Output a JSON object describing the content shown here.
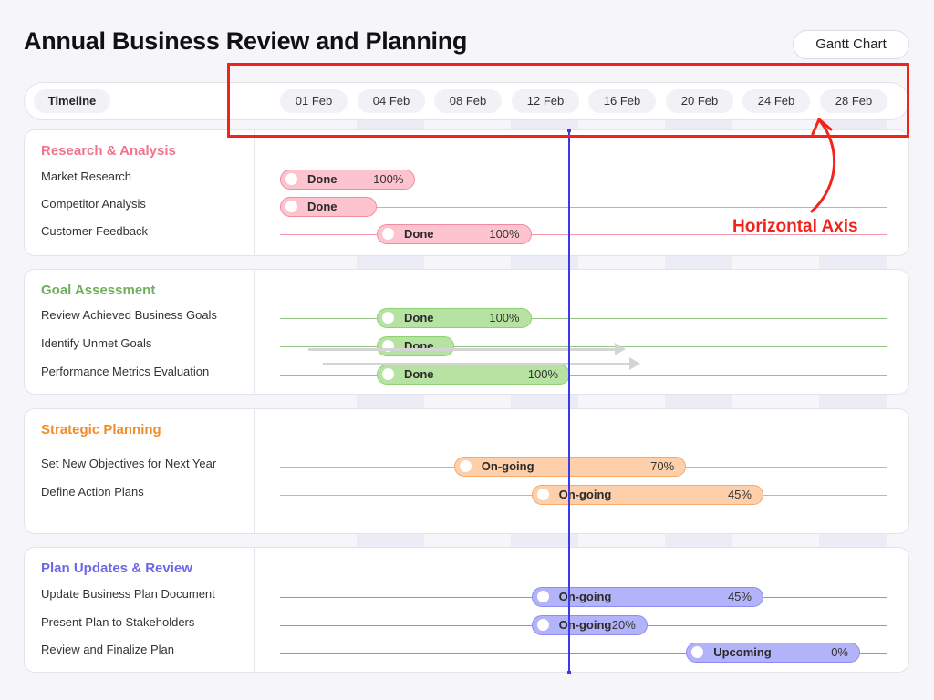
{
  "title": "Annual Business Review and Planning",
  "chart_type_label": "Gantt Chart",
  "annotation": "Horizontal Axis",
  "chart_data": {
    "type": "gantt",
    "axis_label": "Timeline",
    "dates": [
      "01 Feb",
      "04 Feb",
      "08 Feb",
      "12 Feb",
      "16 Feb",
      "20 Feb",
      "24 Feb",
      "28 Feb"
    ],
    "today": 16,
    "groups": [
      {
        "name": "Research & Analysis",
        "color": "#f0748d",
        "bar_fill": "#fdc4cf",
        "bar_border": "#f28ba0",
        "tasks": [
          {
            "name": "Market Research",
            "start": 1,
            "end": 8,
            "status": "Done",
            "progress": "100%"
          },
          {
            "name": "Competitor Analysis",
            "start": 1,
            "end": 6,
            "status": "Done",
            "progress": ""
          },
          {
            "name": "Customer Feedback",
            "start": 6,
            "end": 14,
            "status": "Done",
            "progress": "100%"
          }
        ]
      },
      {
        "name": "Goal Assessment",
        "color": "#6fae5a",
        "bar_fill": "#b7e3a2",
        "bar_border": "#8fd072",
        "tasks": [
          {
            "name": "Review Achieved Business Goals",
            "start": 6,
            "end": 14,
            "status": "Done",
            "progress": "100%"
          },
          {
            "name": "Identify Unmet Goals",
            "start": 6,
            "end": 10,
            "status": "Done",
            "progress": ""
          },
          {
            "name": "Performance Metrics Evaluation",
            "start": 6,
            "end": 16,
            "status": "Done",
            "progress": "100%"
          }
        ]
      },
      {
        "name": "Strategic Planning",
        "color": "#f08c2a",
        "bar_fill": "#fdd0ab",
        "bar_border": "#f5a86a",
        "tasks": [
          {
            "name": "Set New Objectives for Next Year",
            "start": 10,
            "end": 22,
            "status": "On-going",
            "progress": "70%"
          },
          {
            "name": "Define Action Plans",
            "start": 14,
            "end": 26,
            "status": "On-going",
            "progress": "45%"
          }
        ]
      },
      {
        "name": "Plan Updates & Review",
        "color": "#6c66e8",
        "bar_fill": "#b3b3fa",
        "bar_border": "#8c8cf3",
        "tasks": [
          {
            "name": "Update Business Plan Document",
            "start": 14,
            "end": 26,
            "status": "On-going",
            "progress": "45%"
          },
          {
            "name": "Present Plan to Stakeholders",
            "start": 14,
            "end": 20,
            "status": "On-going",
            "progress": "20%"
          },
          {
            "name": "Review and Finalize Plan",
            "start": 22,
            "end": 31,
            "status": "Upcoming",
            "progress": "0%"
          }
        ]
      }
    ]
  }
}
